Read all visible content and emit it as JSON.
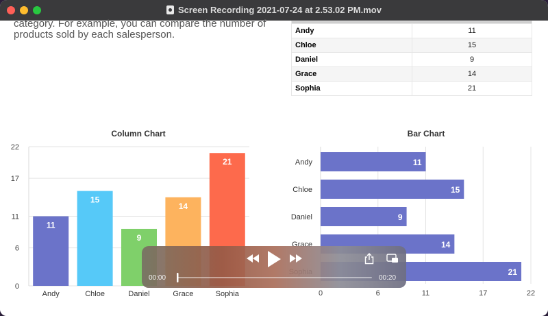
{
  "window": {
    "title": "Screen Recording 2021-07-24 at 2.53.02 PM.mov"
  },
  "intro_text": "category. For example, you can compare the number of products sold by each salesperson.",
  "table": {
    "rows": [
      {
        "name": "Andy",
        "value": "11"
      },
      {
        "name": "Chloe",
        "value": "15"
      },
      {
        "name": "Daniel",
        "value": "9"
      },
      {
        "name": "Grace",
        "value": "14"
      },
      {
        "name": "Sophia",
        "value": "21"
      }
    ]
  },
  "chart_data": [
    {
      "type": "bar",
      "title": "Column Chart",
      "orientation": "vertical",
      "categories": [
        "Andy",
        "Chloe",
        "Daniel",
        "Grace",
        "Sophia"
      ],
      "values": [
        11,
        15,
        9,
        14,
        21
      ],
      "ylim": [
        0,
        22
      ],
      "yticks": [
        0,
        6,
        11,
        17,
        22
      ],
      "colors": [
        "#6b73c9",
        "#56c9f8",
        "#7fd06a",
        "#fdb35e",
        "#fd6a4c"
      ],
      "grid": true,
      "data_labels": true
    },
    {
      "type": "bar",
      "title": "Bar Chart",
      "orientation": "horizontal",
      "categories": [
        "Andy",
        "Chloe",
        "Daniel",
        "Grace",
        "Sophia"
      ],
      "values": [
        11,
        15,
        9,
        14,
        21
      ],
      "xlim": [
        0,
        22
      ],
      "xticks": [
        0,
        6,
        11,
        17,
        22
      ],
      "color": "#6b73c9",
      "grid": true,
      "data_labels": true
    }
  ],
  "player": {
    "current_time": "00:00",
    "duration": "00:20",
    "progress": 0,
    "icons": [
      "rewind-icon",
      "play-icon",
      "fast-forward-icon",
      "share-icon",
      "picture-in-picture-icon"
    ]
  }
}
